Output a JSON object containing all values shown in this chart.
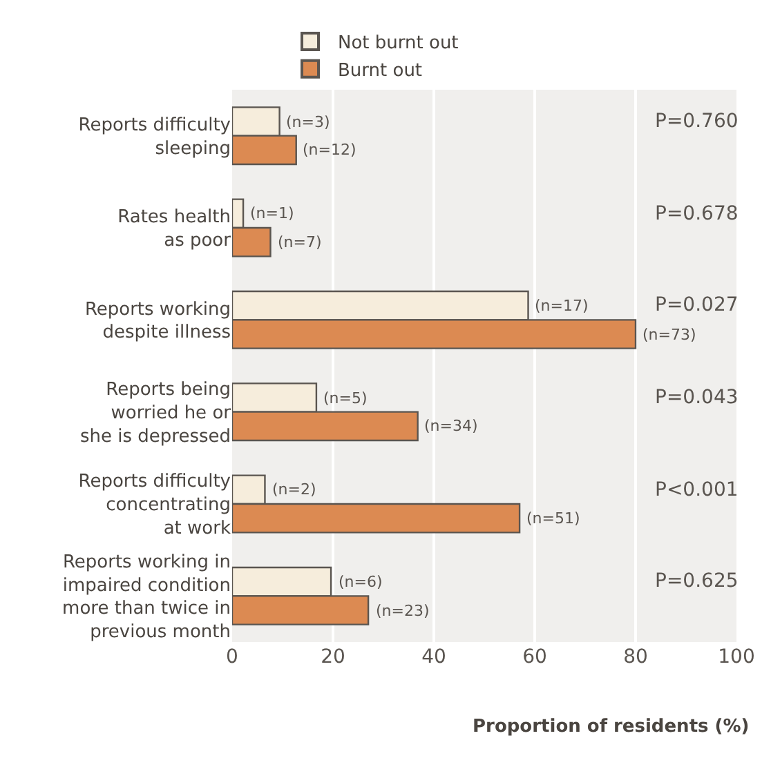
{
  "chart_data": {
    "type": "bar",
    "orientation": "horizontal",
    "categories": [
      "Reports difficulty\nsleeping",
      "Rates health\nas poor",
      "Reports working\ndespite illness",
      "Reports being\nworried he or\nshe is depressed",
      "Reports difficulty\nconcentrating\nat work",
      "Reports working in\nimpaired condition\nmore than twice in\nprevious month"
    ],
    "series": [
      {
        "name": "Not burnt out",
        "color": "#f6eddc",
        "values": [
          9.4,
          2.2,
          58.7,
          16.7,
          6.5,
          19.6
        ]
      },
      {
        "name": "Burnt out",
        "color": "#dc8a52",
        "values": [
          12.7,
          7.6,
          80.0,
          36.8,
          57.0,
          27.0
        ]
      }
    ],
    "xlabel": "Proportion of residents (%)",
    "xlim": [
      0,
      100
    ],
    "xticks": [
      0,
      20,
      40,
      60,
      80,
      100
    ],
    "grid": "x",
    "legend": "top left",
    "annotations": [
      "P=0.760",
      "P=0.678",
      "P=0.027",
      "P=0.043",
      "P<0.001",
      "P=0.625",
      {
        "text": "(n=3)",
        "x": 9.4,
        "y": "Reports difficulty\nsleeping"
      },
      {
        "text": "(n=12)",
        "x": 12.7,
        "y": "Reports difficulty\nsleeping"
      },
      {
        "text": "(n=1)",
        "x": 2.2,
        "y": "Rates health\nas poor"
      },
      {
        "text": "(n=7)",
        "x": 7.6,
        "y": "Rates health\nas poor"
      },
      {
        "text": "(n=17)",
        "x": 58.7,
        "y": "Reports working\ndespite illness"
      },
      {
        "text": "(n=73)",
        "x": 80.0,
        "y": "Reports working\ndespite illness"
      },
      {
        "text": "(n=5)",
        "x": 16.7,
        "y": "Reports being\nworried he or\nshe is depressed"
      },
      {
        "text": "(n=34)",
        "x": 36.8,
        "y": "Reports being\nworried he or\nshe is depressed"
      },
      {
        "text": "(n=2)",
        "x": 6.5,
        "y": "Reports difficulty\nconcentrating\nat work"
      },
      {
        "text": "(n=51)",
        "x": 57.0,
        "y": "Reports difficulty\nconcentrating\nat work"
      },
      {
        "text": "(n=6)",
        "x": 19.6,
        "y": "Reports working in\nimpaired condition\nmore than twice in\nprevious month"
      },
      {
        "text": "(n=23)",
        "x": 27.0,
        "y": "Reports working in\nimpaired condition\nmore than twice in\nprevious month"
      }
    ]
  }
}
